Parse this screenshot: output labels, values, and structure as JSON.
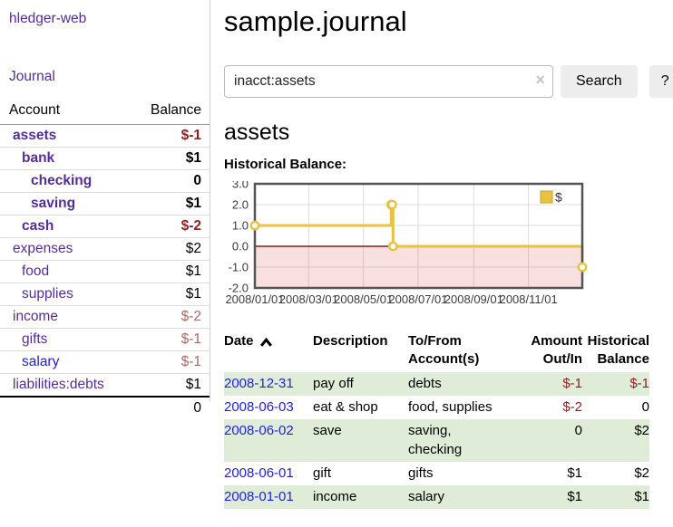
{
  "app": {
    "brand": "hledger-web",
    "nav_journal": "Journal"
  },
  "colors": {
    "link_purple": "#552d9b",
    "link_blue": "#2222dd",
    "negative": "#8f1f1f",
    "negative_muted": "#b06767",
    "row_green": "#dfedd8",
    "chart_line": "#e8c240",
    "chart_point_fill": "#ffffff",
    "chart_negative_fill": "rgba(220,60,60,0.16)",
    "chart_zero_line": "#8b1a1a",
    "chart_border": "#545454"
  },
  "sidebar": {
    "table": {
      "col_account": "Account",
      "col_balance": "Balance"
    },
    "accounts": [
      {
        "name": "assets",
        "indent": 0,
        "bold": true,
        "balance": "$-1",
        "neg": true
      },
      {
        "name": "bank",
        "indent": 1,
        "bold": true,
        "balance": "$1",
        "neg": false
      },
      {
        "name": "checking",
        "indent": 2,
        "bold": true,
        "balance": "0",
        "neg": false
      },
      {
        "name": "saving",
        "indent": 2,
        "bold": true,
        "balance": "$1",
        "neg": false
      },
      {
        "name": "cash",
        "indent": 1,
        "bold": true,
        "balance": "$-2",
        "neg": true
      },
      {
        "name": "expenses",
        "indent": 0,
        "bold": false,
        "balance": "$2",
        "neg": false
      },
      {
        "name": "food",
        "indent": 1,
        "bold": false,
        "balance": "$1",
        "neg": false
      },
      {
        "name": "supplies",
        "indent": 1,
        "bold": false,
        "balance": "$1",
        "neg": false
      },
      {
        "name": "income",
        "indent": 0,
        "bold": false,
        "balance": "$-2",
        "neg": true
      },
      {
        "name": "gifts",
        "indent": 1,
        "bold": false,
        "balance": "$-1",
        "neg": true
      },
      {
        "name": "salary",
        "indent": 1,
        "bold": false,
        "balance": "$-1",
        "neg": true,
        "link_blue": true
      },
      {
        "name": "liabilities:debts",
        "indent": 0,
        "bold": false,
        "balance": "$1",
        "neg": false
      }
    ],
    "total": "0"
  },
  "header": {
    "title": "sample.journal"
  },
  "search": {
    "value": "inacct:assets",
    "clear_icon": "×",
    "button": "Search",
    "help_button": "?"
  },
  "account_page": {
    "heading": "assets",
    "chart_label": "Historical Balance:"
  },
  "chart_data": {
    "type": "line",
    "step": true,
    "series": [
      {
        "name": "$",
        "color": "#e8c240",
        "x": [
          "2008-01-01",
          "2008-06-01",
          "2008-06-02",
          "2008-06-03",
          "2008-12-31"
        ],
        "values": [
          1,
          2,
          2,
          0,
          -1
        ]
      }
    ],
    "title": "Historical Balance:",
    "xlabel": "",
    "ylabel": "",
    "xlim": [
      "2008-01-01",
      "2008-12-31"
    ],
    "ylim": [
      -2,
      3
    ],
    "x_ticks": [
      "2008/01/01",
      "2008/03/01",
      "2008/05/01",
      "2008/07/01",
      "2008/09/01",
      "2008/11/01"
    ],
    "y_ticks": [
      3.0,
      2.0,
      1.0,
      0.0,
      -1.0,
      -2.0
    ],
    "grid": true,
    "legend": {
      "label": "$",
      "position": "top-right"
    },
    "negative_region_shaded": true,
    "zero_line": true
  },
  "register": {
    "headers": {
      "date": "Date",
      "sort_direction": "ascending",
      "description": "Description",
      "account_lines": [
        "To/From",
        "Account(s)"
      ],
      "amount_lines": [
        "Amount",
        "Out/In"
      ],
      "balance_lines": [
        "Historical",
        "Balance"
      ]
    },
    "rows": [
      {
        "date": "2008-12-31",
        "description": "pay off",
        "accounts": "debts",
        "amount": "$-1",
        "amount_neg": true,
        "balance": "$-1",
        "balance_neg": true
      },
      {
        "date": "2008-06-03",
        "description": "eat & shop",
        "accounts": "food, supplies",
        "amount": "$-2",
        "amount_neg": true,
        "balance": "0",
        "balance_neg": false
      },
      {
        "date": "2008-06-02",
        "description": "save",
        "accounts": "saving, checking",
        "amount": "0",
        "amount_neg": false,
        "balance": "$2",
        "balance_neg": false
      },
      {
        "date": "2008-06-01",
        "description": "gift",
        "accounts": "gifts",
        "amount": "$1",
        "amount_neg": false,
        "balance": "$2",
        "balance_neg": false
      },
      {
        "date": "2008-01-01",
        "description": "income",
        "accounts": "salary",
        "amount": "$1",
        "amount_neg": false,
        "balance": "$1",
        "balance_neg": false
      }
    ]
  }
}
